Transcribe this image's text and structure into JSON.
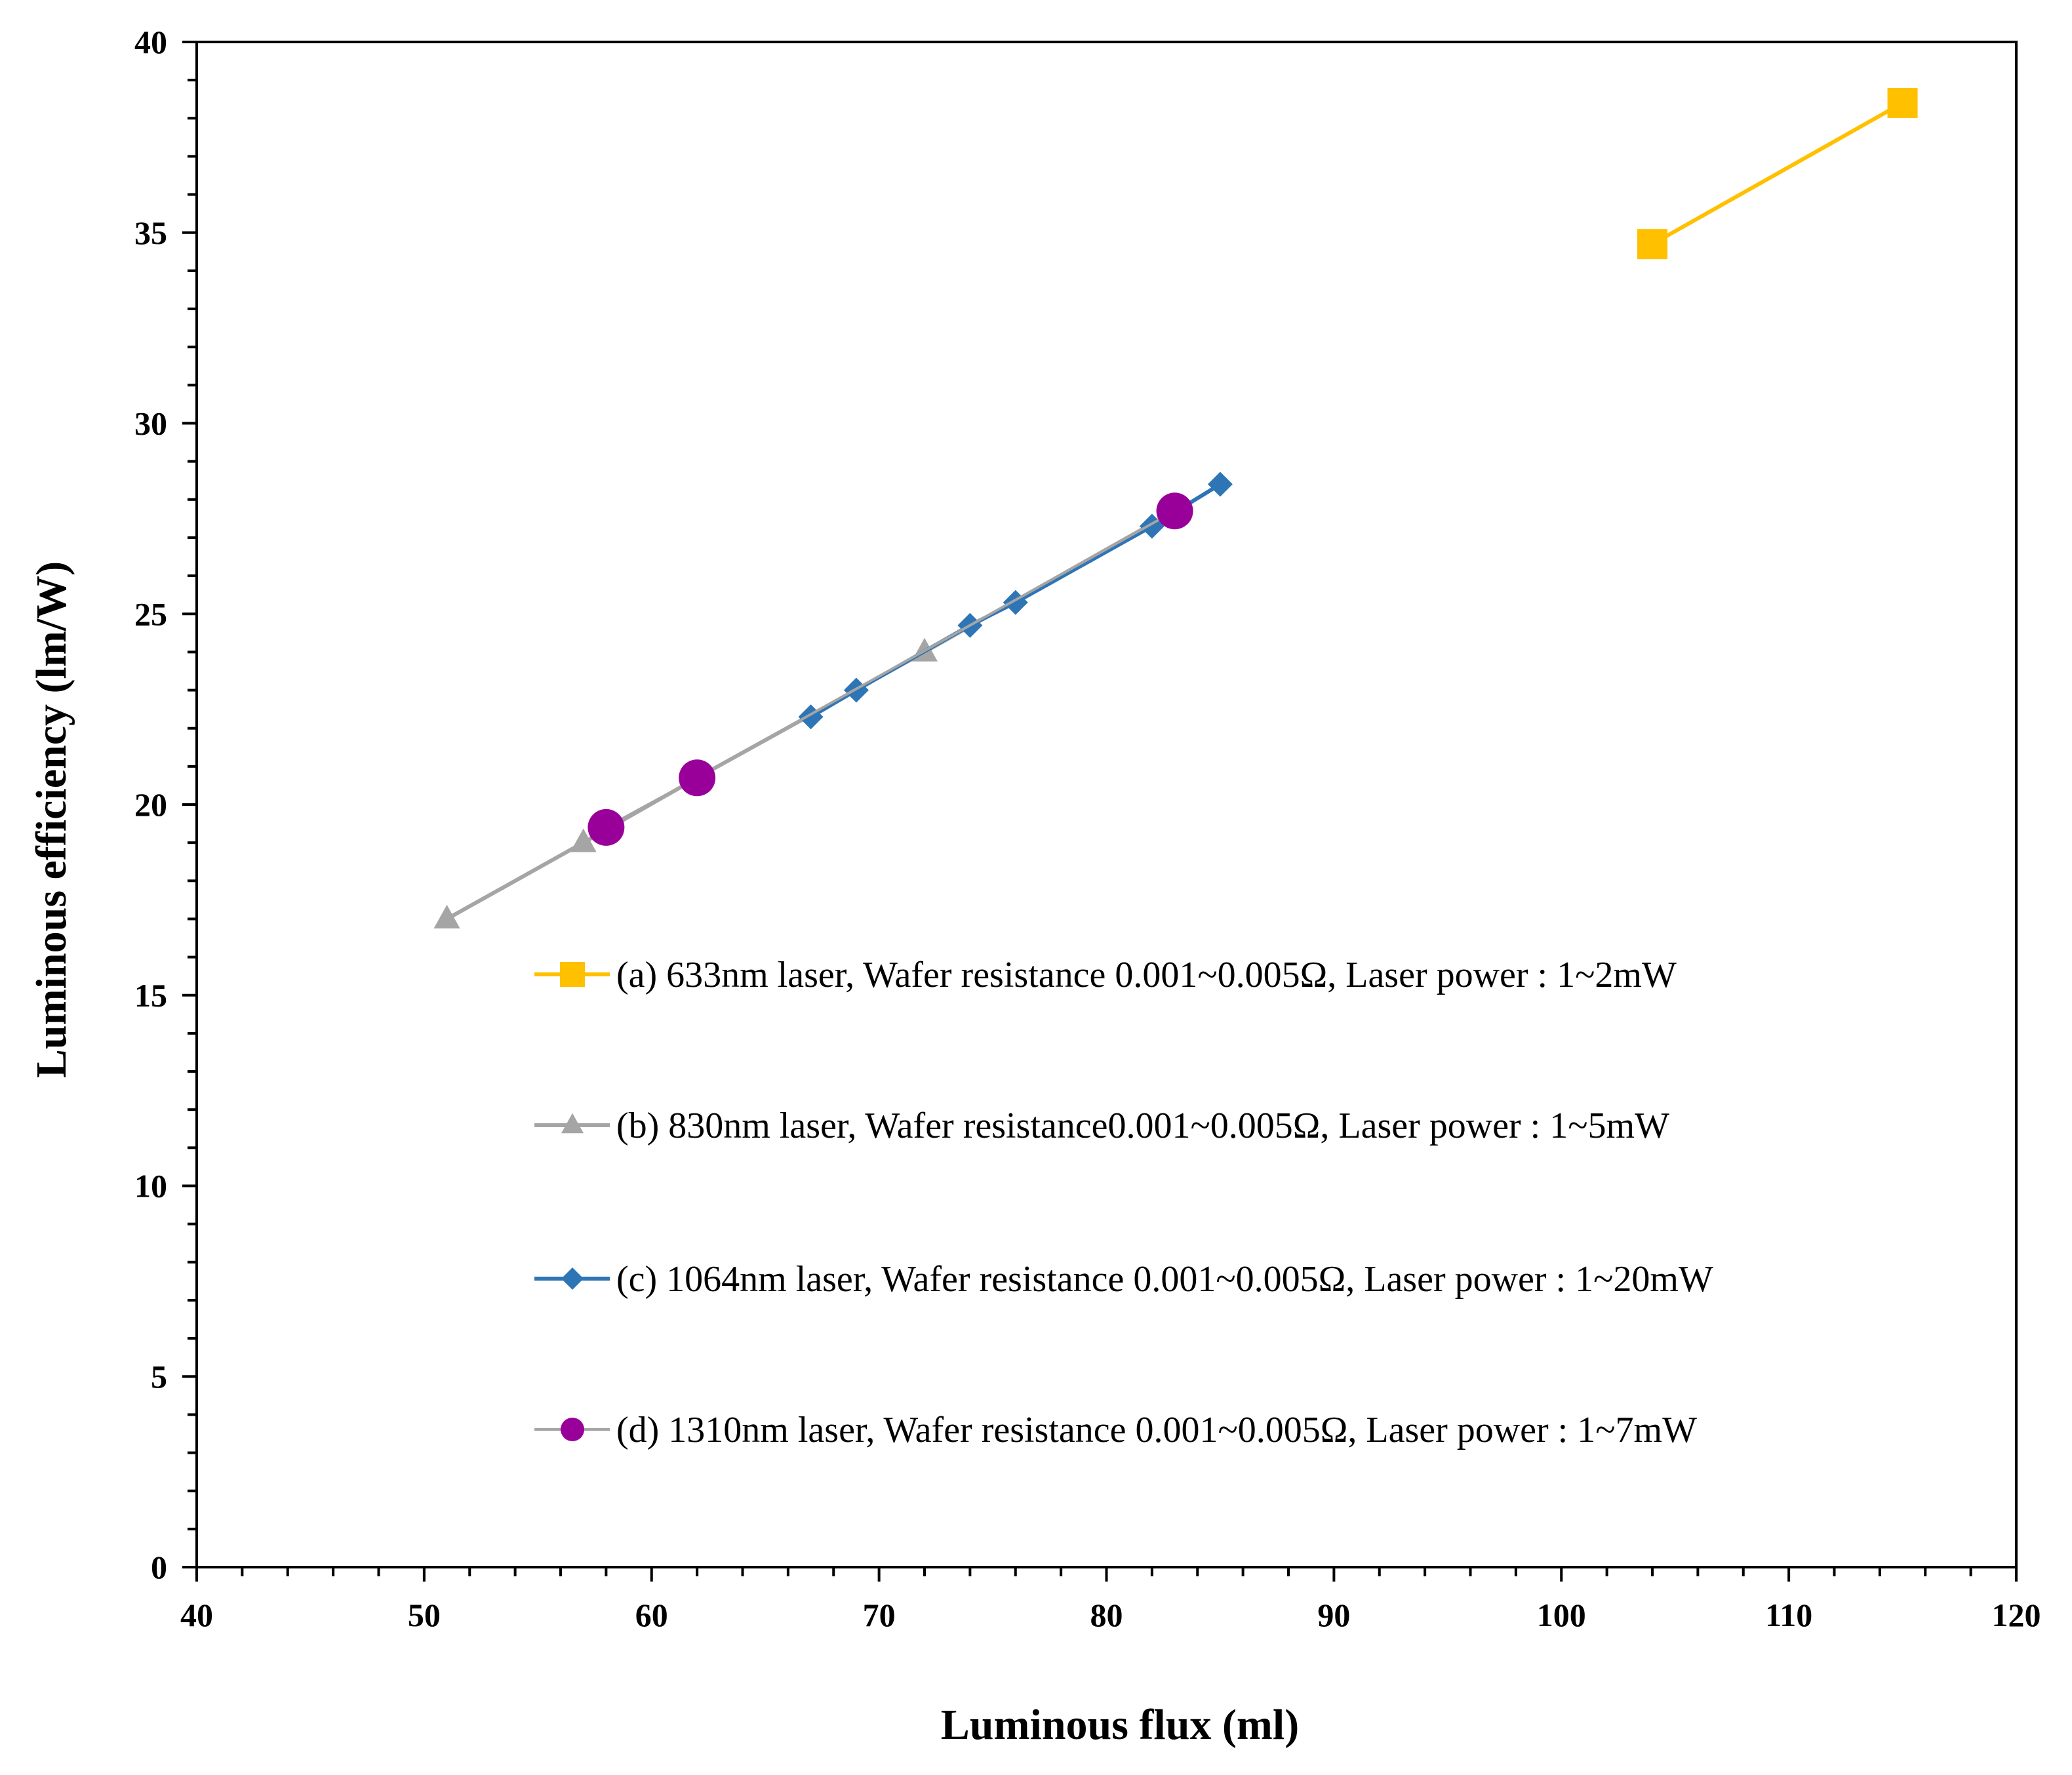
{
  "chart_data": {
    "type": "scatter",
    "title": "",
    "xlabel": "Luminous flux (ml)",
    "ylabel": "Luminous efficiency (lm/W)",
    "xlim": [
      40,
      120
    ],
    "ylim": [
      0,
      40
    ],
    "x_ticks": [
      40,
      50,
      60,
      70,
      80,
      90,
      100,
      110,
      120
    ],
    "y_ticks": [
      0,
      5,
      10,
      15,
      20,
      25,
      30,
      35,
      40
    ],
    "grid": false,
    "legend_position": "bottom-right inside plot",
    "series": [
      {
        "name": "(a) 633nm laser, Wafer resistance 0.001~0.005Ω, Laser power : 1~2mW",
        "color": "#FFC000",
        "marker": "square",
        "x": [
          104,
          115
        ],
        "y": [
          34.7,
          38.4
        ]
      },
      {
        "name": "(b) 830nm laser, Wafer resistance0.001~0.005Ω, Laser power : 1~5mW",
        "color": "#A5A5A5",
        "marker": "triangle",
        "x": [
          51,
          57,
          62,
          72,
          83
        ],
        "y": [
          17.0,
          19.0,
          20.7,
          24.0,
          27.7
        ]
      },
      {
        "name": "(c) 1064nm laser, Wafer resistance 0.001~0.005Ω, Laser power : 1~20mW",
        "color": "#2E75B6",
        "marker": "diamond",
        "x": [
          67,
          69,
          74,
          76,
          82,
          85
        ],
        "y": [
          22.3,
          23.0,
          24.7,
          25.3,
          27.3,
          28.4
        ]
      },
      {
        "name": "(d) 1310nm laser, Wafer resistance 0.001~0.005Ω, Laser power : 1~7mW",
        "color": "#990099",
        "line_color": "#A5A5A5",
        "marker": "circle",
        "x": [
          58,
          62,
          83
        ],
        "y": [
          19.4,
          20.7,
          27.7
        ]
      }
    ]
  }
}
